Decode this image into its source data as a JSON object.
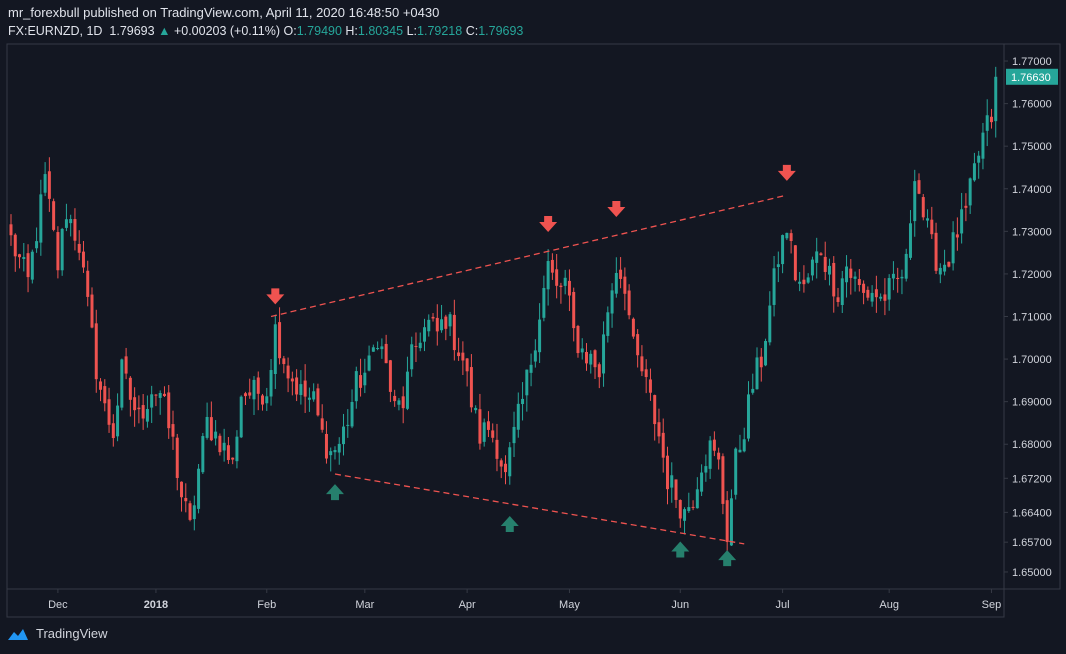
{
  "header": {
    "line1": "mr_forexbull published on TradingView.com, April 11, 2020 16:48:50 +0430",
    "symbol": "FX:EURNZD, 1D",
    "last": "1.79693",
    "change": "+0.00203 (+0.11%)",
    "o_label": "O:",
    "o": "1.79490",
    "h_label": "H:",
    "h": "1.80345",
    "l_label": "L:",
    "l": "1.79218",
    "c_label": "C:",
    "c": "1.79693"
  },
  "footer": {
    "brand": "TradingView"
  },
  "colors": {
    "bg": "#131722",
    "up": "#26a69a",
    "down": "#ef5350",
    "upArrow": "#26806d",
    "downArrow": "#ef5350",
    "text": "#d1d4dc"
  },
  "chart_data": {
    "type": "candlestick",
    "title": "FX:EURNZD, 1D",
    "ylim": [
      1.646,
      1.774
    ],
    "xlim": [
      0,
      232
    ],
    "y_ticks": [
      "1.77000",
      "1.76000",
      "1.75000",
      "1.74000",
      "1.73000",
      "1.72000",
      "1.71000",
      "1.70000",
      "1.69000",
      "1.68000",
      "1.67200",
      "1.66400",
      "1.65700",
      "1.65000"
    ],
    "x_ticks": [
      {
        "label": "Dec",
        "x": 11
      },
      {
        "label": "2018",
        "x": 34
      },
      {
        "label": "Feb",
        "x": 60
      },
      {
        "label": "Mar",
        "x": 83
      },
      {
        "label": "Apr",
        "x": 107
      },
      {
        "label": "May",
        "x": 131
      },
      {
        "label": "Jun",
        "x": 157
      },
      {
        "label": "Jul",
        "x": 181
      },
      {
        "label": "Aug",
        "x": 206
      },
      {
        "label": "Sep",
        "x": 230
      }
    ],
    "last_price_label": "1.76630",
    "last_price": 1.7663,
    "trendlines": [
      {
        "name": "resistance",
        "x1": 61,
        "y1": 1.71,
        "x2": 182,
        "y2": 1.7385,
        "style": "dashed"
      },
      {
        "name": "support",
        "x1": 76,
        "y1": 1.673,
        "x2": 172,
        "y2": 1.6566,
        "style": "dashed"
      }
    ],
    "markers": [
      {
        "type": "down",
        "x": 62,
        "y": 1.7145
      },
      {
        "type": "down",
        "x": 126,
        "y": 1.7315
      },
      {
        "type": "down",
        "x": 142,
        "y": 1.735
      },
      {
        "type": "down",
        "x": 182,
        "y": 1.7435
      },
      {
        "type": "up",
        "x": 76,
        "y": 1.669
      },
      {
        "type": "up",
        "x": 117,
        "y": 1.6615
      },
      {
        "type": "up",
        "x": 157,
        "y": 1.6555
      },
      {
        "type": "up",
        "x": 168,
        "y": 1.6535
      }
    ],
    "anchors": [
      [
        0,
        1.728
      ],
      [
        4,
        1.718
      ],
      [
        8,
        1.742
      ],
      [
        11,
        1.722
      ],
      [
        13,
        1.735
      ],
      [
        16,
        1.727
      ],
      [
        18,
        1.712
      ],
      [
        20,
        1.698
      ],
      [
        22,
        1.688
      ],
      [
        24,
        1.683
      ],
      [
        26,
        1.697
      ],
      [
        28,
        1.691
      ],
      [
        30,
        1.686
      ],
      [
        33,
        1.693
      ],
      [
        35,
        1.692
      ],
      [
        38,
        1.68
      ],
      [
        40,
        1.668
      ],
      [
        42,
        1.66
      ],
      [
        44,
        1.674
      ],
      [
        46,
        1.685
      ],
      [
        49,
        1.681
      ],
      [
        52,
        1.675
      ],
      [
        54,
        1.692
      ],
      [
        57,
        1.692
      ],
      [
        60,
        1.693
      ],
      [
        62,
        1.707
      ],
      [
        65,
        1.697
      ],
      [
        68,
        1.692
      ],
      [
        71,
        1.69
      ],
      [
        73,
        1.682
      ],
      [
        75,
        1.678
      ],
      [
        77,
        1.68
      ],
      [
        79,
        1.686
      ],
      [
        81,
        1.694
      ],
      [
        84,
        1.698
      ],
      [
        86,
        1.706
      ],
      [
        88,
        1.698
      ],
      [
        90,
        1.688
      ],
      [
        92,
        1.69
      ],
      [
        94,
        1.7
      ],
      [
        96,
        1.706
      ],
      [
        98,
        1.708
      ],
      [
        100,
        1.706
      ],
      [
        102,
        1.71
      ],
      [
        104,
        1.705
      ],
      [
        106,
        1.7
      ],
      [
        108,
        1.69
      ],
      [
        110,
        1.682
      ],
      [
        112,
        1.684
      ],
      [
        114,
        1.68
      ],
      [
        116,
        1.672
      ],
      [
        118,
        1.682
      ],
      [
        120,
        1.69
      ],
      [
        122,
        1.7
      ],
      [
        124,
        1.711
      ],
      [
        126,
        1.722
      ],
      [
        128,
        1.716
      ],
      [
        130,
        1.718
      ],
      [
        132,
        1.706
      ],
      [
        134,
        1.702
      ],
      [
        136,
        1.7
      ],
      [
        138,
        1.697
      ],
      [
        140,
        1.712
      ],
      [
        142,
        1.722
      ],
      [
        144,
        1.718
      ],
      [
        146,
        1.702
      ],
      [
        148,
        1.697
      ],
      [
        150,
        1.69
      ],
      [
        152,
        1.682
      ],
      [
        154,
        1.672
      ],
      [
        156,
        1.668
      ],
      [
        158,
        1.664
      ],
      [
        160,
        1.668
      ],
      [
        162,
        1.676
      ],
      [
        164,
        1.679
      ],
      [
        166,
        1.675
      ],
      [
        168,
        1.659
      ],
      [
        170,
        1.676
      ],
      [
        172,
        1.684
      ],
      [
        174,
        1.694
      ],
      [
        176,
        1.7
      ],
      [
        178,
        1.712
      ],
      [
        180,
        1.724
      ],
      [
        182,
        1.731
      ],
      [
        184,
        1.72
      ],
      [
        186,
        1.716
      ],
      [
        188,
        1.722
      ],
      [
        190,
        1.726
      ],
      [
        192,
        1.72
      ],
      [
        194,
        1.716
      ],
      [
        196,
        1.722
      ],
      [
        198,
        1.718
      ],
      [
        200,
        1.715
      ],
      [
        202,
        1.716
      ],
      [
        204,
        1.714
      ],
      [
        206,
        1.716
      ],
      [
        208,
        1.718
      ],
      [
        210,
        1.722
      ],
      [
        212,
        1.745
      ],
      [
        214,
        1.734
      ],
      [
        216,
        1.726
      ],
      [
        218,
        1.722
      ],
      [
        220,
        1.724
      ],
      [
        222,
        1.73
      ],
      [
        224,
        1.734
      ],
      [
        226,
        1.744
      ],
      [
        228,
        1.752
      ],
      [
        230,
        1.757
      ],
      [
        231,
        1.7663
      ]
    ]
  }
}
